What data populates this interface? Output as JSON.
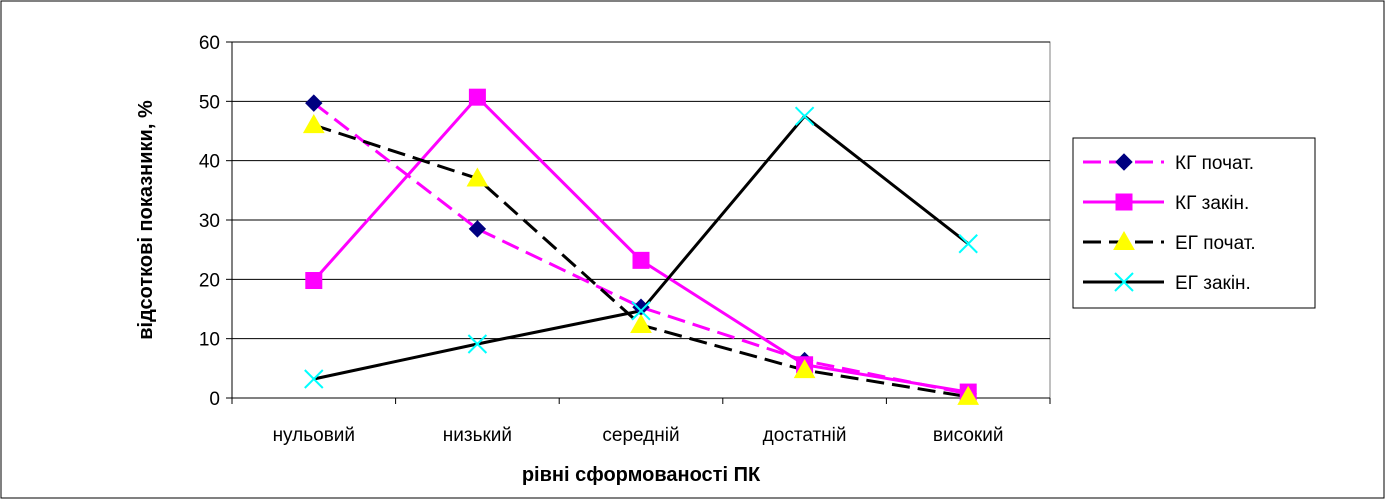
{
  "chart_data": {
    "type": "line",
    "title": "",
    "xlabel": "рівні сформованості ПК",
    "ylabel": "відсоткові показники, %",
    "ylim": [
      0,
      60
    ],
    "yticks": [
      0,
      10,
      20,
      30,
      40,
      50,
      60
    ],
    "grid": true,
    "legend_position": "right",
    "categories": [
      "нульовий",
      "низький",
      "середній",
      "достатній",
      "високий"
    ],
    "series": [
      {
        "name": "КГ почат.",
        "values": [
          49.7,
          28.5,
          15.3,
          6.3,
          0.7
        ],
        "color": "#ff00ff",
        "line_style": "dashed",
        "marker": "diamond",
        "marker_color": "#000080"
      },
      {
        "name": "КГ закін.",
        "values": [
          19.8,
          50.7,
          23.2,
          5.6,
          1.0
        ],
        "color": "#ff00ff",
        "line_style": "solid",
        "marker": "square",
        "marker_color": "#ff00ff"
      },
      {
        "name": "ЕГ почат.",
        "values": [
          46.0,
          37.0,
          12.3,
          4.7,
          0.2
        ],
        "color": "#000000",
        "line_style": "dashed",
        "marker": "triangle",
        "marker_color": "#ffff00"
      },
      {
        "name": "ЕГ закін.",
        "values": [
          3.2,
          9.1,
          14.7,
          47.5,
          26.0
        ],
        "color": "#000000",
        "line_style": "solid",
        "marker": "x",
        "marker_color": "#00ffff"
      }
    ]
  }
}
